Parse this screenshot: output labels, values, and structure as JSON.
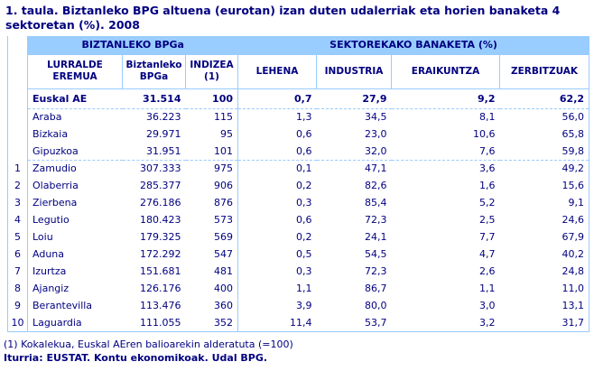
{
  "title": "1. taula. Biztanleko BPG altuena (eurotan) izan duten udalerriak eta horien banaketa 4 sektoretan (%). 2008",
  "table": {
    "group_headers": [
      {
        "label": "BIZTANLEKO BPGa"
      },
      {
        "label": "SEKTOREKAKO BANAKETA (%)"
      }
    ],
    "column_headers": [
      "LURRALDE EREMUA",
      "Biztanleko BPGa",
      "INDIZEA (1)",
      "LEHENA",
      "INDUSTRIA",
      "ERAIKUNTZA",
      "ZERBITZUAK"
    ],
    "rows": [
      {
        "rank": "",
        "area": "Euskal AE",
        "values": [
          "31.514",
          "100",
          "0,7",
          "27,9",
          "9,2",
          "62,2"
        ],
        "bold": true,
        "sep_before": false
      },
      {
        "rank": "",
        "area": "Araba",
        "values": [
          "36.223",
          "115",
          "1,3",
          "34,5",
          "8,1",
          "56,0"
        ],
        "bold": false,
        "sep_before": true
      },
      {
        "rank": "",
        "area": "Bizkaia",
        "values": [
          "29.971",
          "95",
          "0,6",
          "23,0",
          "10,6",
          "65,8"
        ],
        "bold": false,
        "sep_before": false
      },
      {
        "rank": "",
        "area": "Gipuzkoa",
        "values": [
          "31.951",
          "101",
          "0,6",
          "32,0",
          "7,6",
          "59,8"
        ],
        "bold": false,
        "sep_before": false
      },
      {
        "rank": "1",
        "area": "Zamudio",
        "values": [
          "307.333",
          "975",
          "0,1",
          "47,1",
          "3,6",
          "49,2"
        ],
        "bold": false,
        "sep_before": true
      },
      {
        "rank": "2",
        "area": "Olaberria",
        "values": [
          "285.377",
          "906",
          "0,2",
          "82,6",
          "1,6",
          "15,6"
        ],
        "bold": false,
        "sep_before": false
      },
      {
        "rank": "3",
        "area": "Zierbena",
        "values": [
          "276.186",
          "876",
          "0,3",
          "85,4",
          "5,2",
          "9,1"
        ],
        "bold": false,
        "sep_before": false
      },
      {
        "rank": "4",
        "area": "Legutio",
        "values": [
          "180.423",
          "573",
          "0,6",
          "72,3",
          "2,5",
          "24,6"
        ],
        "bold": false,
        "sep_before": false
      },
      {
        "rank": "5",
        "area": "Loiu",
        "values": [
          "179.325",
          "569",
          "0,2",
          "24,1",
          "7,7",
          "67,9"
        ],
        "bold": false,
        "sep_before": false
      },
      {
        "rank": "6",
        "area": "Aduna",
        "values": [
          "172.292",
          "547",
          "0,5",
          "54,5",
          "4,7",
          "40,2"
        ],
        "bold": false,
        "sep_before": false
      },
      {
        "rank": "7",
        "area": "Izurtza",
        "values": [
          "151.681",
          "481",
          "0,3",
          "72,3",
          "2,6",
          "24,8"
        ],
        "bold": false,
        "sep_before": false
      },
      {
        "rank": "8",
        "area": "Ajangiz",
        "values": [
          "126.176",
          "400",
          "1,1",
          "86,7",
          "1,1",
          "11,0"
        ],
        "bold": false,
        "sep_before": false
      },
      {
        "rank": "9",
        "area": "Berantevilla",
        "values": [
          "113.476",
          "360",
          "3,9",
          "80,0",
          "3,0",
          "13,1"
        ],
        "bold": false,
        "sep_before": false
      },
      {
        "rank": "10",
        "area": "Laguardia",
        "values": [
          "111.055",
          "352",
          "11,4",
          "53,7",
          "3,2",
          "31,7"
        ],
        "bold": false,
        "sep_before": false
      }
    ]
  },
  "footnote": "(1) Kokalekua, Euskal AEren balioarekin alderatuta (=100)",
  "source": "Iturria: EUSTAT. Kontu ekonomikoak. Udal BPG.",
  "colors": {
    "header_bg": "#99CCFF",
    "border": "#99CCFF",
    "text": "#000080"
  }
}
